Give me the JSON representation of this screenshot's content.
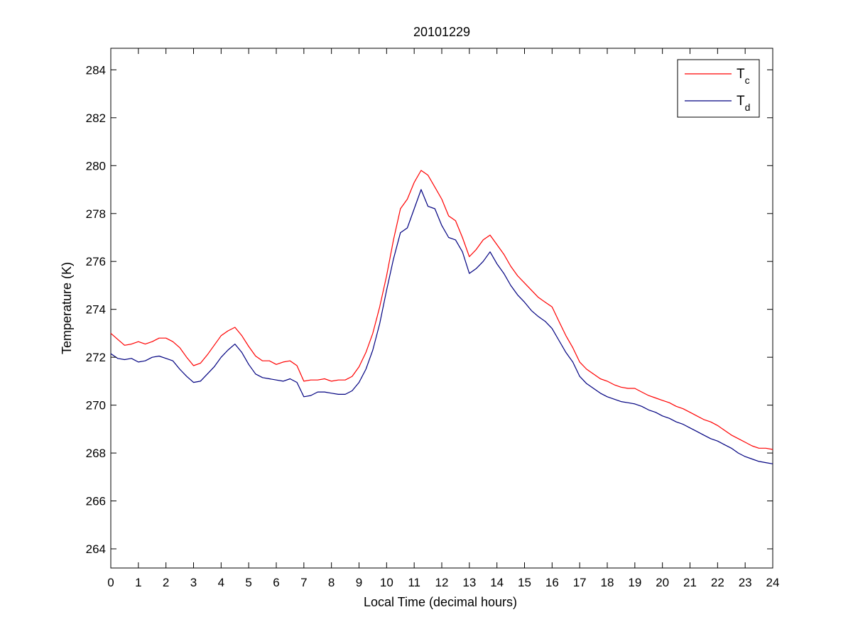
{
  "chart_data": {
    "type": "line",
    "title": "20101229",
    "xlabel": "Local Time (decimal hours)",
    "ylabel": "Temperature (K)",
    "xlim": [
      0,
      24
    ],
    "ylim": [
      263.2,
      284.9
    ],
    "xticks": [
      0,
      1,
      2,
      3,
      4,
      5,
      6,
      7,
      8,
      9,
      10,
      11,
      12,
      13,
      14,
      15,
      16,
      17,
      18,
      19,
      20,
      21,
      22,
      23,
      24
    ],
    "yticks": [
      264,
      266,
      268,
      270,
      272,
      274,
      276,
      278,
      280,
      282,
      284
    ],
    "grid": false,
    "legend": {
      "position": "top-right"
    },
    "colors": {
      "Tc": "#ff0000",
      "Td": "#000080"
    },
    "series": [
      {
        "name": "T",
        "subscript": "c",
        "color": "#ff0000",
        "x": [
          0,
          0.25,
          0.5,
          0.75,
          1,
          1.25,
          1.5,
          1.75,
          2,
          2.25,
          2.5,
          2.75,
          3,
          3.25,
          3.5,
          3.75,
          4,
          4.25,
          4.5,
          4.75,
          5,
          5.25,
          5.5,
          5.75,
          6,
          6.25,
          6.5,
          6.75,
          7,
          7.25,
          7.5,
          7.75,
          8,
          8.25,
          8.5,
          8.75,
          9,
          9.25,
          9.5,
          9.75,
          10,
          10.25,
          10.5,
          10.75,
          11,
          11.25,
          11.5,
          11.75,
          12,
          12.25,
          12.5,
          12.75,
          13,
          13.25,
          13.5,
          13.75,
          14,
          14.25,
          14.5,
          14.75,
          15,
          15.25,
          15.5,
          15.75,
          16,
          16.25,
          16.5,
          16.75,
          17,
          17.25,
          17.5,
          17.75,
          18,
          18.25,
          18.5,
          18.75,
          19,
          19.25,
          19.5,
          19.75,
          20,
          20.25,
          20.5,
          20.75,
          21,
          21.25,
          21.5,
          21.75,
          22,
          22.25,
          22.5,
          22.75,
          23,
          23.25,
          23.5,
          23.75,
          24
        ],
        "values": [
          273.0,
          272.75,
          272.5,
          272.55,
          272.65,
          272.55,
          272.65,
          272.8,
          272.8,
          272.65,
          272.4,
          272.0,
          271.65,
          271.75,
          272.1,
          272.5,
          272.9,
          273.1,
          273.25,
          272.9,
          272.45,
          272.05,
          271.85,
          271.85,
          271.7,
          271.8,
          271.85,
          271.65,
          271.0,
          271.05,
          271.05,
          271.1,
          271.0,
          271.05,
          271.05,
          271.2,
          271.6,
          272.2,
          273.0,
          274.1,
          275.4,
          276.9,
          278.2,
          278.6,
          279.3,
          279.8,
          279.6,
          279.1,
          278.6,
          277.9,
          277.7,
          277.0,
          276.2,
          276.5,
          276.9,
          277.1,
          276.7,
          276.3,
          275.8,
          275.4,
          275.1,
          274.8,
          274.5,
          274.3,
          274.1,
          273.5,
          272.9,
          272.4,
          271.8,
          271.5,
          271.3,
          271.1,
          271.0,
          270.85,
          270.75,
          270.7,
          270.7,
          270.55,
          270.4,
          270.3,
          270.2,
          270.1,
          269.95,
          269.85,
          269.7,
          269.55,
          269.4,
          269.3,
          269.15,
          268.95,
          268.75,
          268.6,
          268.45,
          268.3,
          268.2,
          268.2,
          268.15
        ]
      },
      {
        "name": "T",
        "subscript": "d",
        "color": "#000080",
        "x": [
          0,
          0.25,
          0.5,
          0.75,
          1,
          1.25,
          1.5,
          1.75,
          2,
          2.25,
          2.5,
          2.75,
          3,
          3.25,
          3.5,
          3.75,
          4,
          4.25,
          4.5,
          4.75,
          5,
          5.25,
          5.5,
          5.75,
          6,
          6.25,
          6.5,
          6.75,
          7,
          7.25,
          7.5,
          7.75,
          8,
          8.25,
          8.5,
          8.75,
          9,
          9.25,
          9.5,
          9.75,
          10,
          10.25,
          10.5,
          10.75,
          11,
          11.25,
          11.5,
          11.75,
          12,
          12.25,
          12.5,
          12.75,
          13,
          13.25,
          13.5,
          13.75,
          14,
          14.25,
          14.5,
          14.75,
          15,
          15.25,
          15.5,
          15.75,
          16,
          16.25,
          16.5,
          16.75,
          17,
          17.25,
          17.5,
          17.75,
          18,
          18.25,
          18.5,
          18.75,
          19,
          19.25,
          19.5,
          19.75,
          20,
          20.25,
          20.5,
          20.75,
          21,
          21.25,
          21.5,
          21.75,
          22,
          22.25,
          22.5,
          22.75,
          23,
          23.25,
          23.5,
          23.75,
          24
        ],
        "values": [
          272.15,
          271.95,
          271.9,
          271.95,
          271.8,
          271.85,
          272.0,
          272.05,
          271.95,
          271.85,
          271.5,
          271.2,
          270.95,
          271.0,
          271.3,
          271.6,
          272.0,
          272.3,
          272.55,
          272.2,
          271.7,
          271.3,
          271.15,
          271.1,
          271.05,
          271.0,
          271.1,
          270.95,
          270.35,
          270.4,
          270.55,
          270.55,
          270.5,
          270.45,
          270.45,
          270.6,
          270.95,
          271.5,
          272.3,
          273.4,
          274.8,
          276.1,
          277.2,
          277.4,
          278.2,
          279.0,
          278.3,
          278.2,
          277.5,
          277.0,
          276.9,
          276.4,
          275.5,
          275.7,
          276.0,
          276.4,
          275.9,
          275.5,
          275.0,
          274.6,
          274.3,
          273.95,
          273.7,
          273.5,
          273.2,
          272.7,
          272.2,
          271.8,
          271.2,
          270.9,
          270.7,
          270.5,
          270.35,
          270.25,
          270.15,
          270.1,
          270.05,
          269.95,
          269.8,
          269.7,
          269.55,
          269.45,
          269.3,
          269.2,
          269.05,
          268.9,
          268.75,
          268.6,
          268.5,
          268.35,
          268.2,
          268.0,
          267.85,
          267.75,
          267.65,
          267.6,
          267.55
        ]
      }
    ]
  }
}
